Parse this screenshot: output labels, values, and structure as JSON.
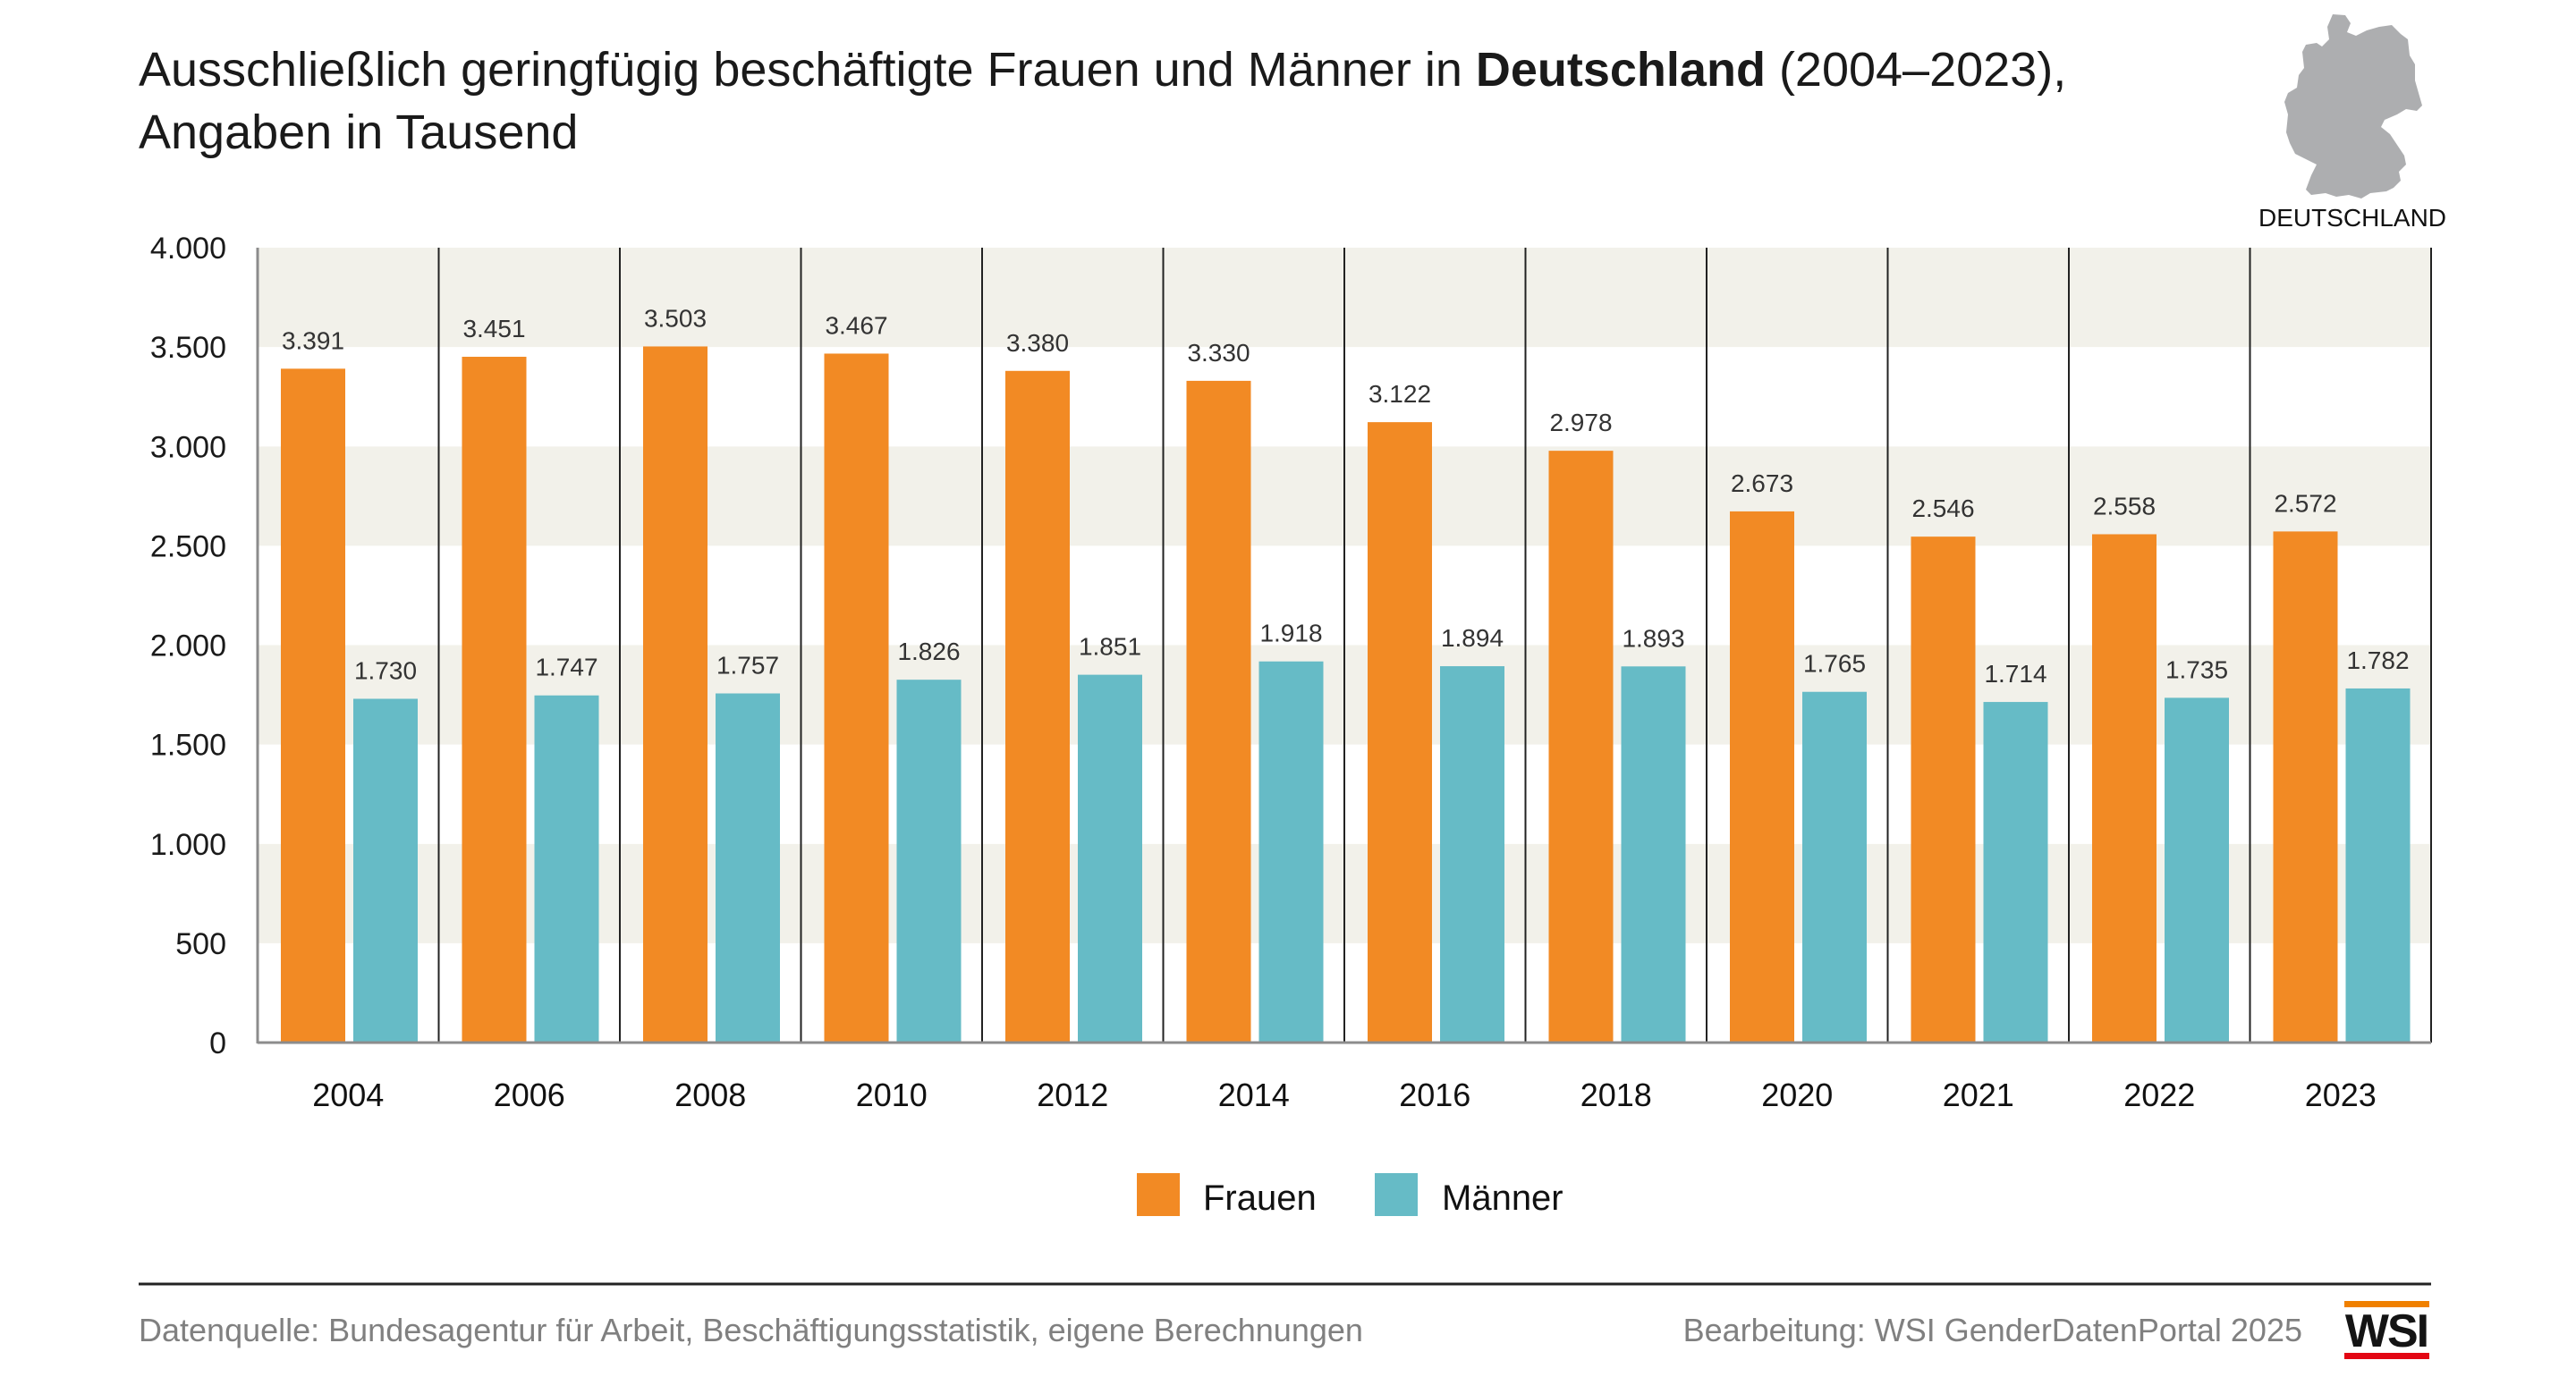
{
  "header": {
    "title_part1": "Ausschließlich geringfügig beschäftigte Frauen und Männer in ",
    "title_bold": "Deutschland",
    "title_part2": " (2004–2023),",
    "subtitle": "Angaben in Tausend"
  },
  "map": {
    "icon": "germany-map-icon",
    "label": "DEUTSCHLAND",
    "color": "#adaeb0"
  },
  "colors": {
    "frauen": "#f28a24",
    "maenner": "#66bbc6",
    "band": "#f2f1ea",
    "logo_orange": "#f08000",
    "logo_red": "#e30613"
  },
  "chart_data": {
    "type": "bar",
    "title": "Ausschließlich geringfügig beschäftigte Frauen und Männer in Deutschland (2004–2023), Angaben in Tausend",
    "xlabel": "",
    "ylabel": "",
    "categories": [
      "2004",
      "2006",
      "2008",
      "2010",
      "2012",
      "2014",
      "2016",
      "2018",
      "2020",
      "2021",
      "2022",
      "2023"
    ],
    "series": [
      {
        "name": "Frauen",
        "values": [
          3391,
          3451,
          3503,
          3467,
          3380,
          3330,
          3122,
          2978,
          2673,
          2546,
          2558,
          2572
        ],
        "labels": [
          "3.391",
          "3.451",
          "3.503",
          "3.467",
          "3.380",
          "3.330",
          "3.122",
          "2.978",
          "2.673",
          "2.546",
          "2.558",
          "2.572"
        ]
      },
      {
        "name": "Männer",
        "values": [
          1730,
          1747,
          1757,
          1826,
          1851,
          1918,
          1894,
          1893,
          1765,
          1714,
          1735,
          1782
        ],
        "labels": [
          "1.730",
          "1.747",
          "1.757",
          "1.826",
          "1.851",
          "1.918",
          "1.894",
          "1.893",
          "1.765",
          "1.714",
          "1.735",
          "1.782"
        ]
      }
    ],
    "ylim": [
      0,
      4000
    ],
    "yticks": [
      0,
      500,
      1000,
      1500,
      2000,
      2500,
      3000,
      3500,
      4000
    ],
    "ytick_labels": [
      "0",
      "500",
      "1.000",
      "1.500",
      "2.000",
      "2.500",
      "3.000",
      "3.500",
      "4.000"
    ],
    "grid": "alternating horizontal bands",
    "legend": {
      "placement": "bottom-center",
      "entries": [
        "Frauen",
        "Männer"
      ]
    }
  },
  "footer": {
    "source": "Datenquelle: Bundesagentur für Arbeit, Beschäftigungsstatistik, eigene Berechnungen",
    "credit": "Bearbeitung: WSI GenderDatenPortal 2025",
    "logo_text": "WSI"
  }
}
